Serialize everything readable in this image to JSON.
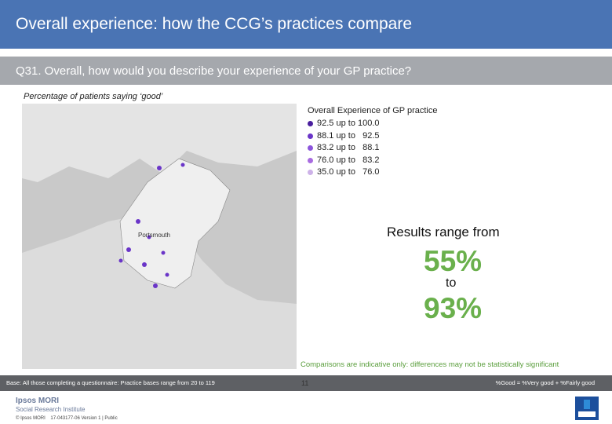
{
  "header": {
    "title": "Overall experience: how the CCG’s practices compare"
  },
  "question": "Q31. Overall, how would you describe your experience of your GP practice?",
  "subtitle": "Percentage of patients saying ‘good’",
  "map": {
    "place_label": "Portsmouth"
  },
  "legend": {
    "title": "Overall Experience of GP practice",
    "items": [
      {
        "label": "92.5 up to 100.0",
        "color": "#4a1f9e"
      },
      {
        "label": "88.1 up to   92.5",
        "color": "#6a35c8"
      },
      {
        "label": "83.2 up to   88.1",
        "color": "#8c55dc"
      },
      {
        "label": "76.0 up to   83.2",
        "color": "#a86be0"
      },
      {
        "label": "35.0 up to   76.0",
        "color": "#cdb2e8"
      }
    ]
  },
  "results": {
    "intro": "Results range from",
    "low": "55%",
    "joiner": "to",
    "high": "93%"
  },
  "note": "Comparisons are indicative only: differences may not be statistically significant",
  "footer": {
    "base": "Base: All those completing a questionnaire: Practice bases range from 20 to 119",
    "definition": "%Good = %Very good + %Fairly good",
    "page": "11",
    "brand": "Ipsos MORI",
    "brand_sub": "Social Research Institute",
    "copyright": "© Ipsos MORI    17-043177-06 Version 1 | Public"
  }
}
